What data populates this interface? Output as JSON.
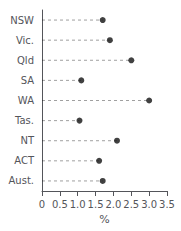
{
  "chart_data": {
    "type": "dot",
    "orientation": "horizontal",
    "categories": [
      "NSW",
      "Vic.",
      "Qld",
      "SA",
      "WA",
      "Tas.",
      "NT",
      "ACT",
      "Aust."
    ],
    "values": [
      1.7,
      1.9,
      2.5,
      1.1,
      3.0,
      1.05,
      2.1,
      1.6,
      1.7
    ],
    "xlabel": "%",
    "xlim": [
      0,
      3.5
    ],
    "xticks": [
      0,
      0.5,
      {
        "value": 1,
        "label": "1.0"
      },
      1.5,
      {
        "value": 2,
        "label": "2.0"
      },
      2.5,
      {
        "value": 3,
        "label": "3.0"
      },
      3.5
    ],
    "color": "#111111",
    "marker": "circle",
    "line_style": "dashed",
    "grid": false
  }
}
